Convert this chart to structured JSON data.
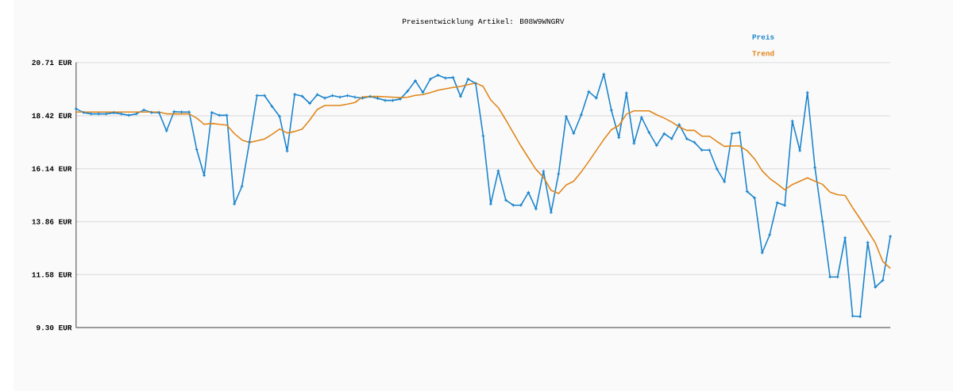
{
  "chart_data": {
    "type": "line",
    "title": "Preisentwicklung Artikel: B08W9WNGRV",
    "categories": [
      null,
      null,
      null,
      null,
      null,
      null,
      null,
      null,
      null,
      null,
      null,
      null,
      null,
      null,
      null,
      null,
      null,
      null,
      null,
      null,
      null,
      null,
      null,
      null,
      null,
      null,
      null,
      null,
      null,
      null,
      null,
      null,
      null,
      null,
      null,
      null,
      null,
      null,
      null,
      null,
      null,
      null,
      null,
      null,
      null,
      null,
      null,
      null,
      null,
      null,
      null,
      null,
      null,
      null,
      null,
      null,
      null,
      null,
      null,
      null,
      null,
      null,
      null,
      null,
      null,
      null,
      null,
      null,
      null,
      null,
      null,
      null,
      null,
      null,
      null,
      null,
      null,
      null,
      null,
      null,
      null,
      null,
      null,
      null,
      null,
      null,
      null,
      null,
      null,
      null,
      null,
      null,
      null,
      null,
      null,
      null,
      null,
      null,
      null,
      null,
      null,
      null,
      null,
      null,
      null,
      null,
      null,
      null,
      null
    ],
    "series": [
      {
        "name": "Preis",
        "color": "#1a84cc",
        "marker": "cross",
        "values": [
          18.72,
          18.56,
          18.5,
          18.5,
          18.5,
          18.55,
          18.5,
          18.44,
          18.5,
          18.67,
          18.56,
          18.56,
          17.77,
          18.6,
          18.58,
          18.58,
          16.97,
          15.85,
          18.56,
          18.44,
          18.44,
          14.62,
          15.38,
          17.29,
          19.29,
          19.29,
          18.82,
          18.39,
          16.9,
          19.34,
          19.26,
          18.95,
          19.33,
          19.18,
          19.29,
          19.22,
          19.29,
          19.22,
          19.18,
          19.25,
          19.17,
          19.08,
          19.08,
          19.14,
          19.49,
          19.93,
          19.42,
          20.0,
          20.17,
          20.04,
          20.07,
          19.25,
          20.0,
          19.81,
          17.55,
          14.62,
          16.05,
          14.79,
          14.57,
          14.57,
          15.12,
          14.41,
          16.03,
          14.26,
          15.92,
          18.39,
          17.66,
          18.46,
          19.46,
          19.18,
          20.21,
          18.66,
          17.48,
          19.4,
          17.23,
          18.35,
          17.7,
          17.14,
          17.65,
          17.43,
          18.04,
          17.43,
          17.28,
          16.94,
          16.94,
          16.13,
          15.58,
          17.65,
          17.7,
          15.16,
          14.88,
          12.52,
          13.3,
          14.68,
          14.56,
          18.19,
          16.92,
          19.42,
          16.19,
          13.87,
          11.48,
          11.48,
          13.17,
          9.8,
          9.77,
          12.97,
          11.04,
          11.34,
          13.23
        ]
      },
      {
        "name": "Trend",
        "color": "#e0861a",
        "marker": "none",
        "values": [
          18.58,
          18.58,
          18.58,
          18.58,
          18.58,
          18.58,
          18.58,
          18.58,
          18.58,
          18.58,
          18.58,
          18.58,
          18.5,
          18.5,
          18.5,
          18.5,
          18.32,
          18.05,
          18.09,
          18.05,
          18.02,
          17.65,
          17.38,
          17.27,
          17.34,
          17.42,
          17.62,
          17.85,
          17.68,
          17.74,
          17.85,
          18.24,
          18.69,
          18.86,
          18.86,
          18.86,
          18.92,
          18.99,
          19.23,
          19.25,
          19.25,
          19.24,
          19.22,
          19.2,
          19.22,
          19.3,
          19.33,
          19.42,
          19.52,
          19.58,
          19.64,
          19.68,
          19.76,
          19.83,
          19.68,
          19.1,
          18.77,
          18.24,
          17.68,
          17.12,
          16.61,
          16.11,
          15.77,
          15.21,
          15.07,
          15.44,
          15.6,
          16.0,
          16.45,
          16.93,
          17.4,
          17.82,
          18.0,
          18.49,
          18.63,
          18.63,
          18.63,
          18.46,
          18.32,
          18.15,
          17.94,
          17.79,
          17.79,
          17.54,
          17.54,
          17.31,
          17.1,
          17.12,
          17.12,
          16.92,
          16.56,
          16.05,
          15.72,
          15.49,
          15.23,
          15.46,
          15.6,
          15.75,
          15.6,
          15.47,
          15.13,
          15.02,
          14.99,
          14.46,
          13.98,
          13.47,
          12.95,
          12.15,
          11.85
        ]
      }
    ],
    "ylim": [
      9.3,
      20.71
    ],
    "yticks": [
      {
        "value": 9.3,
        "label": "9.30 EUR"
      },
      {
        "value": 11.58,
        "label": "11.58 EUR"
      },
      {
        "value": 13.86,
        "label": "13.86 EUR"
      },
      {
        "value": 16.14,
        "label": "16.14 EUR"
      },
      {
        "value": 18.42,
        "label": "18.42 EUR"
      },
      {
        "value": 20.71,
        "label": "20.71 EUR"
      }
    ],
    "grid": "y",
    "legend": "top right",
    "line_style": "solid"
  }
}
